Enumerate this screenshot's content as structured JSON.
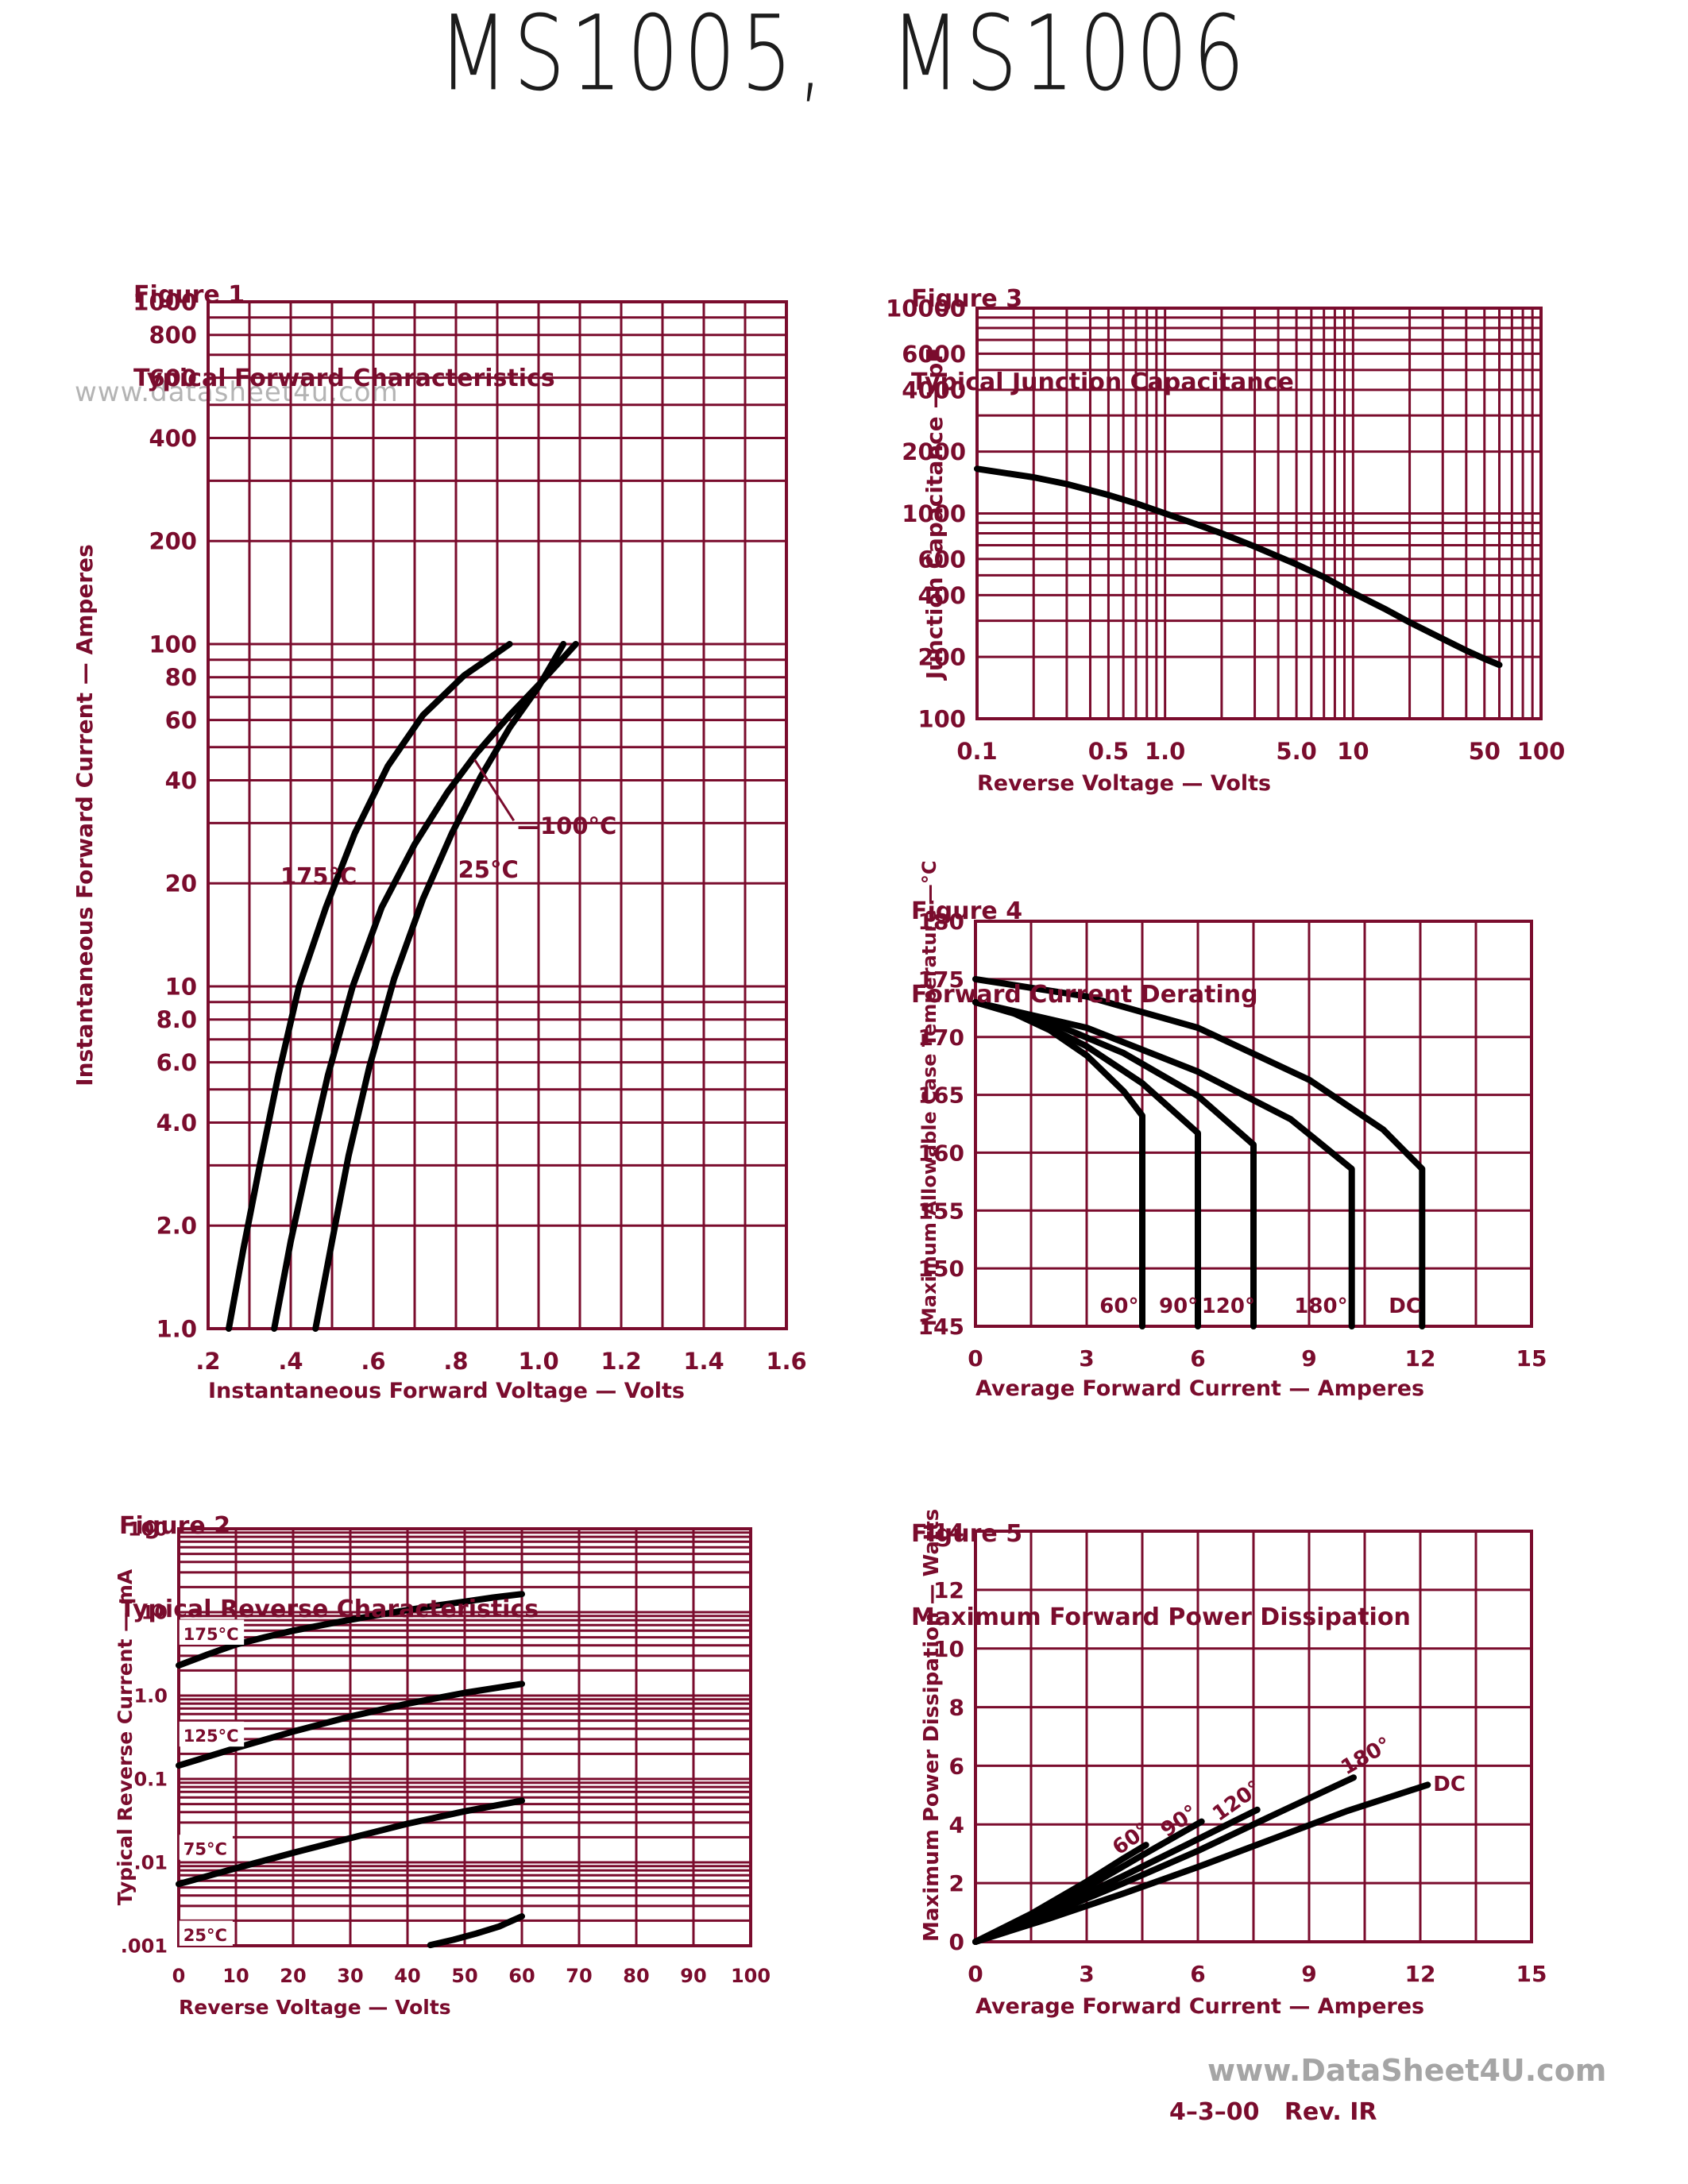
{
  "page": {
    "title": "MS1005,  MS1006",
    "watermark_overlay": "www.datasheet4u.com",
    "watermark_footer": "www.DataSheet4U.com",
    "revision": "4–3–00   Rev. IR",
    "colors": {
      "maroon": "#7a0c2d",
      "curve": "#000000",
      "gray": "#a5a5a5"
    }
  },
  "chart_data": [
    {
      "id": "fig1",
      "type": "line",
      "title": "Figure 1",
      "subtitle": "Typical Forward Characteristics",
      "xlabel": "Instantaneous Forward Voltage — Volts",
      "ylabel": "Instantaneous Forward Current — Amperes",
      "x_axis": {
        "scale": "linear",
        "min": 0.2,
        "max": 1.6,
        "minor_step": 0.1,
        "ticks": [
          0.2,
          0.4,
          0.6,
          0.8,
          1.0,
          1.2,
          1.4,
          1.6
        ],
        "tick_labels": [
          ".2",
          ".4",
          ".6",
          ".8",
          "1.0",
          "1.2",
          "1.4",
          "1.6"
        ]
      },
      "y_axis": {
        "scale": "log",
        "min": 1,
        "max": 1000,
        "ticks": [
          1000,
          800,
          600,
          400,
          200,
          100,
          80,
          60,
          40,
          20,
          10,
          8,
          6,
          4,
          2,
          1
        ],
        "tick_labels": [
          "1000",
          "800",
          "600",
          "400",
          "200",
          "100",
          "80",
          "60",
          "40",
          "20",
          "10",
          "8.0",
          "6.0",
          "4.0",
          "2.0",
          "1.0"
        ]
      },
      "series": [
        {
          "name": "175°C",
          "points": [
            [
              0.25,
              1
            ],
            [
              0.285,
              1.7
            ],
            [
              0.325,
              3
            ],
            [
              0.37,
              5.5
            ],
            [
              0.42,
              10
            ],
            [
              0.485,
              17
            ],
            [
              0.555,
              28
            ],
            [
              0.635,
              44
            ],
            [
              0.72,
              62
            ],
            [
              0.82,
              81
            ],
            [
              0.93,
              100
            ]
          ]
        },
        {
          "name": "100°C",
          "points": [
            [
              0.36,
              1
            ],
            [
              0.4,
              1.8
            ],
            [
              0.44,
              3
            ],
            [
              0.49,
              5.5
            ],
            [
              0.55,
              10
            ],
            [
              0.62,
              17
            ],
            [
              0.7,
              26
            ],
            [
              0.78,
              37
            ],
            [
              0.85,
              48
            ],
            [
              0.93,
              62
            ],
            [
              1.0,
              76
            ],
            [
              1.09,
              100
            ]
          ]
        },
        {
          "name": "25°C",
          "points": [
            [
              0.46,
              1
            ],
            [
              0.5,
              1.8
            ],
            [
              0.54,
              3.2
            ],
            [
              0.59,
              5.8
            ],
            [
              0.65,
              10.5
            ],
            [
              0.72,
              18
            ],
            [
              0.79,
              28
            ],
            [
              0.86,
              41
            ],
            [
              0.93,
              57
            ],
            [
              1.0,
              75
            ],
            [
              1.06,
              100
            ]
          ]
        }
      ],
      "annotations": [
        {
          "text": "175°C",
          "x": 0.375,
          "y": 21
        },
        {
          "text": "25°C",
          "x": 0.805,
          "y": 22
        },
        {
          "text": "—100°C",
          "x": 0.948,
          "y": 29.5
        }
      ],
      "callout": {
        "points": [
          [
            0.845,
            46
          ],
          [
            0.94,
            30.5
          ]
        ]
      },
      "layout": {
        "plot": {
          "l": 262,
          "t": 380,
          "r": 990,
          "b": 1673
        },
        "tick_font": 29,
        "ann_font": 29
      }
    },
    {
      "id": "fig2",
      "type": "line",
      "title": "Figure 2",
      "subtitle": "Typical Reverse Characteristics",
      "xlabel": "Reverse Voltage — Volts",
      "ylabel": "Typical Reverse Current — mA",
      "x_axis": {
        "scale": "linear",
        "min": 0,
        "max": 100,
        "minor_step": 10,
        "ticks": [
          0,
          10,
          20,
          30,
          40,
          50,
          60,
          70,
          80,
          90,
          100
        ],
        "tick_labels": [
          "0",
          "10",
          "20",
          "30",
          "40",
          "50",
          "60",
          "70",
          "80",
          "90",
          "100"
        ]
      },
      "y_axis": {
        "scale": "log",
        "min": 0.001,
        "max": 100,
        "ticks": [
          100,
          10,
          1,
          0.1,
          0.01,
          0.001
        ],
        "tick_labels": [
          "100",
          "10",
          "1.0",
          "0.1",
          ".01",
          ".001"
        ]
      },
      "series": [
        {
          "name": "175°C",
          "points": [
            [
              0,
              2.3
            ],
            [
              5,
              3.1
            ],
            [
              10,
              4.1
            ],
            [
              15,
              5.0
            ],
            [
              20,
              6.0
            ],
            [
              25,
              7.0
            ],
            [
              30,
              8.1
            ],
            [
              35,
              9.3
            ],
            [
              40,
              10.6
            ],
            [
              45,
              12
            ],
            [
              50,
              13.4
            ],
            [
              55,
              15
            ],
            [
              60,
              16.5
            ]
          ]
        },
        {
          "name": "125°C",
          "points": [
            [
              0,
              0.145
            ],
            [
              10,
              0.235
            ],
            [
              20,
              0.37
            ],
            [
              30,
              0.56
            ],
            [
              40,
              0.8
            ],
            [
              50,
              1.08
            ],
            [
              60,
              1.38
            ]
          ]
        },
        {
          "name": "75°C",
          "points": [
            [
              0,
              0.0055
            ],
            [
              10,
              0.0085
            ],
            [
              20,
              0.013
            ],
            [
              30,
              0.0195
            ],
            [
              40,
              0.029
            ],
            [
              50,
              0.041
            ],
            [
              60,
              0.055
            ]
          ]
        },
        {
          "name": "25°C",
          "points": [
            [
              44,
              0.00102
            ],
            [
              48,
              0.00118
            ],
            [
              52,
              0.0014
            ],
            [
              56,
              0.0017
            ],
            [
              60,
              0.00225
            ]
          ]
        }
      ],
      "annotations": [
        {
          "text": "175°C",
          "x": 0.8,
          "y": 5.5,
          "bg": true
        },
        {
          "text": "125°C",
          "x": 0.8,
          "y": 0.33,
          "bg": true
        },
        {
          "text": "75°C",
          "x": 0.8,
          "y": 0.0145,
          "bg": true
        },
        {
          "text": "25°C",
          "x": 0.8,
          "y": 0.00135,
          "bg": true
        }
      ],
      "layout": {
        "plot": {
          "l": 225,
          "t": 1925,
          "r": 945,
          "b": 2450
        },
        "tick_font": 24,
        "ann_font": 21
      }
    },
    {
      "id": "fig3",
      "type": "line",
      "title": "Figure 3",
      "subtitle": "Typical Junction Capacitance",
      "xlabel": "Reverse Voltage — Volts",
      "ylabel": "Junction Capacitance — pF",
      "x_axis": {
        "scale": "log",
        "min": 0.1,
        "max": 100,
        "ticks": [
          0.1,
          0.5,
          1.0,
          5.0,
          10,
          50,
          100
        ],
        "tick_labels": [
          "0.1",
          "0.5",
          "1.0",
          "5.0",
          "10",
          "50",
          "100"
        ]
      },
      "y_axis": {
        "scale": "log",
        "min": 100,
        "max": 10000,
        "ticks": [
          10000,
          6000,
          4000,
          2000,
          1000,
          600,
          400,
          200,
          100
        ],
        "tick_labels": [
          "10000",
          "6000",
          "4000",
          "2000",
          "1000",
          "600",
          "400",
          "200",
          "100"
        ]
      },
      "series": [
        {
          "name": "Cj",
          "points": [
            [
              0.1,
              1650
            ],
            [
              0.15,
              1560
            ],
            [
              0.2,
              1500
            ],
            [
              0.3,
              1390
            ],
            [
              0.5,
              1230
            ],
            [
              0.7,
              1120
            ],
            [
              1.0,
              1000
            ],
            [
              1.5,
              880
            ],
            [
              2,
              800
            ],
            [
              3,
              690
            ],
            [
              5,
              565
            ],
            [
              7,
              490
            ],
            [
              10,
              410
            ],
            [
              15,
              340
            ],
            [
              20,
              295
            ],
            [
              30,
              245
            ],
            [
              40,
              215
            ],
            [
              50,
              196
            ],
            [
              60,
              183
            ]
          ]
        }
      ],
      "annotations": [],
      "layout": {
        "plot": {
          "l": 1230,
          "t": 388,
          "r": 1940,
          "b": 905
        },
        "tick_font": 29,
        "ann_font": 27
      }
    },
    {
      "id": "fig4",
      "type": "line",
      "title": "Figure 4",
      "subtitle": "Forward Current Derating",
      "xlabel": "Average Forward Current — Amperes",
      "ylabel": "Maximum Allowable Case Temperature —°C",
      "x_axis": {
        "scale": "linear",
        "min": 0,
        "max": 15,
        "minor_step": 1.5,
        "ticks": [
          0,
          3,
          6,
          9,
          12,
          15
        ],
        "tick_labels": [
          "0",
          "3",
          "6",
          "9",
          "12",
          "15"
        ]
      },
      "y_axis": {
        "scale": "linear",
        "min": 145,
        "max": 180,
        "minor_step": 5,
        "ticks": [
          180,
          175,
          170,
          165,
          160,
          155,
          150,
          145
        ],
        "tick_labels": [
          "180",
          "175",
          "170",
          "165",
          "160",
          "155",
          "150",
          "145"
        ]
      },
      "series": [
        {
          "name": "60°",
          "points": [
            [
              0,
              173
            ],
            [
              1,
              172.1
            ],
            [
              2,
              170.6
            ],
            [
              3,
              168.4
            ],
            [
              4,
              165.3
            ],
            [
              4.5,
              163.2
            ],
            [
              4.5,
              145
            ]
          ]
        },
        {
          "name": "90°",
          "points": [
            [
              0,
              173
            ],
            [
              1.5,
              171.6
            ],
            [
              3,
              169.2
            ],
            [
              4.5,
              166.0
            ],
            [
              6,
              161.7
            ],
            [
              6,
              145
            ]
          ]
        },
        {
          "name": "120°",
          "points": [
            [
              0,
              173
            ],
            [
              2,
              171.3
            ],
            [
              4,
              168.6
            ],
            [
              6,
              164.9
            ],
            [
              7.5,
              160.7
            ],
            [
              7.5,
              145
            ]
          ]
        },
        {
          "name": "180°",
          "points": [
            [
              0,
              173
            ],
            [
              3,
              170.8
            ],
            [
              6,
              167.0
            ],
            [
              8.5,
              162.9
            ],
            [
              10.15,
              158.6
            ],
            [
              10.15,
              145
            ]
          ]
        },
        {
          "name": "DC",
          "points": [
            [
              0,
              175
            ],
            [
              3,
              173.5
            ],
            [
              6,
              170.8
            ],
            [
              9,
              166.3
            ],
            [
              11,
              162.0
            ],
            [
              12.05,
              158.6
            ],
            [
              12.05,
              145
            ]
          ]
        }
      ],
      "annotations": [
        {
          "text": "60°",
          "x": 3.35,
          "y": 146.8
        },
        {
          "text": "90°",
          "x": 4.95,
          "y": 146.8
        },
        {
          "text": "120°",
          "x": 6.1,
          "y": 146.8
        },
        {
          "text": "180°",
          "x": 8.6,
          "y": 146.8
        },
        {
          "text": "DC",
          "x": 11.15,
          "y": 146.8
        }
      ],
      "layout": {
        "plot": {
          "l": 1228,
          "t": 1160,
          "r": 1928,
          "b": 1670
        },
        "tick_font": 28,
        "ann_font": 26
      }
    },
    {
      "id": "fig5",
      "type": "line",
      "title": "Figure 5",
      "subtitle": "Maximum Forward Power Dissipation",
      "xlabel": "Average Forward Current — Amperes",
      "ylabel": "Maximum Power Dissipation — Watts",
      "x_axis": {
        "scale": "linear",
        "min": 0,
        "max": 15,
        "minor_step": 1.5,
        "ticks": [
          0,
          3,
          6,
          9,
          12,
          15
        ],
        "tick_labels": [
          "0",
          "3",
          "6",
          "9",
          "12",
          "15"
        ]
      },
      "y_axis": {
        "scale": "linear",
        "min": 0,
        "max": 14,
        "minor_step": 2,
        "ticks": [
          14,
          12,
          10,
          8,
          6,
          4,
          2,
          0
        ],
        "tick_labels": [
          "14",
          "12",
          "10",
          "8",
          "6",
          "4",
          "2",
          "0"
        ]
      },
      "series": [
        {
          "name": "60°",
          "points": [
            [
              0,
              0
            ],
            [
              1.5,
              0.95
            ],
            [
              3,
              2.05
            ],
            [
              4,
              2.85
            ],
            [
              4.6,
              3.3
            ]
          ]
        },
        {
          "name": "90°",
          "points": [
            [
              0,
              0
            ],
            [
              1.5,
              0.85
            ],
            [
              3,
              1.85
            ],
            [
              4.5,
              2.95
            ],
            [
              6.1,
              4.1
            ]
          ]
        },
        {
          "name": "120°",
          "points": [
            [
              0,
              0
            ],
            [
              2,
              1.05
            ],
            [
              4,
              2.25
            ],
            [
              6,
              3.5
            ],
            [
              7.6,
              4.5
            ]
          ]
        },
        {
          "name": "180°",
          "points": [
            [
              0,
              0
            ],
            [
              2,
              0.95
            ],
            [
              4,
              2.0
            ],
            [
              6,
              3.1
            ],
            [
              8,
              4.3
            ],
            [
              10.2,
              5.6
            ]
          ]
        },
        {
          "name": "DC",
          "points": [
            [
              0,
              0
            ],
            [
              2,
              0.8
            ],
            [
              4,
              1.65
            ],
            [
              6,
              2.55
            ],
            [
              8,
              3.5
            ],
            [
              10,
              4.45
            ],
            [
              12.2,
              5.35
            ]
          ]
        }
      ],
      "annotations": [
        {
          "text": "60°",
          "x": 3.75,
          "y": 3.15,
          "rot": -35
        },
        {
          "text": "90°",
          "x": 5.05,
          "y": 3.75,
          "rot": -35
        },
        {
          "text": "120°",
          "x": 6.45,
          "y": 4.3,
          "rot": -35
        },
        {
          "text": "180°",
          "x": 9.9,
          "y": 5.9,
          "rot": -30
        },
        {
          "text": "DC",
          "x": 12.35,
          "y": 5.4
        }
      ],
      "layout": {
        "plot": {
          "l": 1228,
          "t": 1928,
          "r": 1928,
          "b": 2445
        },
        "tick_font": 28,
        "ann_font": 26
      }
    }
  ]
}
